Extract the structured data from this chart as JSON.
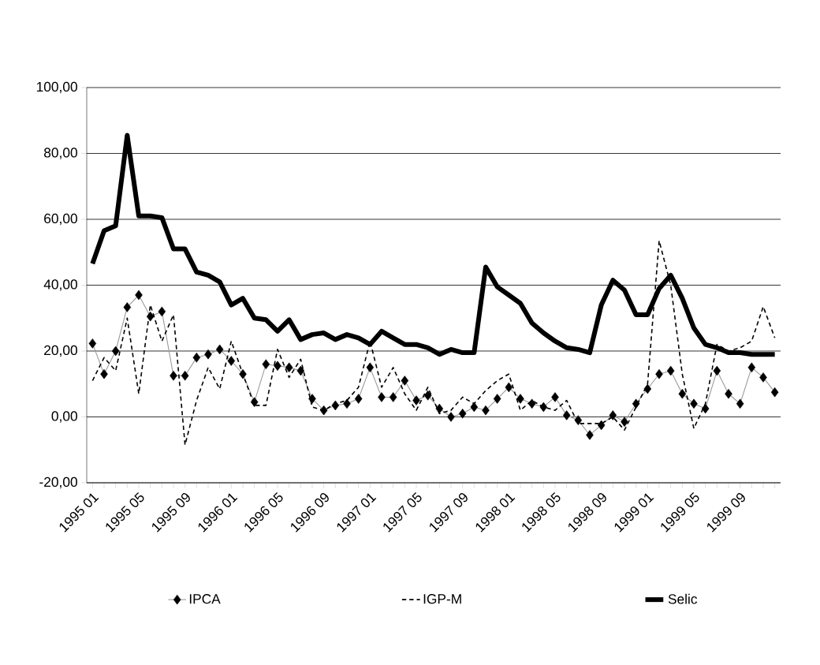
{
  "chart_data": {
    "type": "line",
    "categories": [
      "1995 01",
      null,
      null,
      null,
      "1995 05",
      null,
      null,
      null,
      "1995 09",
      null,
      null,
      null,
      "1996 01",
      null,
      null,
      null,
      "1996 05",
      null,
      null,
      null,
      "1996 09",
      null,
      null,
      null,
      "1997 01",
      null,
      null,
      null,
      "1997 05",
      null,
      null,
      null,
      "1997 09",
      null,
      null,
      null,
      "1998 01",
      null,
      null,
      null,
      "1998 05",
      null,
      null,
      null,
      "1998 09",
      null,
      null,
      null,
      "1999 01",
      null,
      null,
      null,
      "1999 05",
      null,
      null,
      null,
      "1999 09",
      null,
      null,
      null
    ],
    "series": [
      {
        "name": "IPCA",
        "color": "#000000",
        "marker": "diamond",
        "line_style": "solid",
        "values": [
          22.3,
          13,
          20,
          33.3,
          37,
          30.5,
          32,
          12.5,
          12.5,
          18,
          19,
          20.5,
          17,
          13,
          4.5,
          16,
          15.5,
          15,
          14,
          5.5,
          2,
          3.5,
          4,
          5.5,
          15,
          6,
          6,
          11,
          5,
          6.5,
          2.5,
          0,
          1,
          3,
          2,
          5.5,
          9,
          5.5,
          4,
          3,
          6,
          0.5,
          -1,
          -5.5,
          -2.5,
          0.5,
          -1.5,
          4,
          8.5,
          13,
          14,
          7,
          4,
          2.5,
          14,
          7,
          4,
          15,
          12,
          7.5
        ]
      },
      {
        "name": "IGP-M",
        "color": "#000000",
        "marker": "none",
        "line_style": "dashed",
        "values": [
          11,
          18,
          14,
          30,
          7,
          34,
          23,
          31,
          -8.5,
          5,
          15,
          8.5,
          23,
          13,
          3.5,
          3.5,
          20.5,
          12,
          17.5,
          3,
          2,
          4,
          5,
          9,
          23,
          9,
          15,
          7,
          2,
          9,
          1,
          2,
          6,
          4,
          8,
          11,
          13,
          2,
          5,
          3,
          2,
          5,
          -2,
          -2,
          -2,
          0,
          -4,
          3,
          10,
          53.5,
          40,
          13,
          -3.5,
          4,
          22,
          20,
          21,
          23,
          33.5,
          24
        ]
      },
      {
        "name": "Selic",
        "color": "#000000",
        "marker": "none",
        "line_style": "solid",
        "values": [
          46.5,
          56.5,
          58,
          85.5,
          61,
          61,
          60.5,
          51,
          51,
          44,
          43,
          41,
          34,
          36,
          30,
          29.5,
          26,
          29.5,
          23.5,
          25,
          25.5,
          23.5,
          25,
          24,
          22,
          26,
          24,
          22,
          22,
          21,
          19,
          20.5,
          19.5,
          19.5,
          45.5,
          39.5,
          37,
          34.5,
          28.5,
          25.5,
          23,
          21,
          20.5,
          19.5,
          34,
          41.5,
          38.5,
          31,
          31,
          39,
          43,
          36,
          27,
          22,
          21,
          19.5,
          19.5,
          19,
          19,
          19
        ]
      }
    ],
    "ylim": [
      -20,
      100
    ],
    "yticks": [
      {
        "value": -20,
        "label": "-20,00"
      },
      {
        "value": 0,
        "label": "0,00"
      },
      {
        "value": 20,
        "label": "20,00"
      },
      {
        "value": 40,
        "label": "40,00"
      },
      {
        "value": 60,
        "label": "60,00"
      },
      {
        "value": 80,
        "label": "80,00"
      },
      {
        "value": 100,
        "label": "100,00"
      }
    ],
    "grid": "y",
    "legend": "bottom"
  }
}
